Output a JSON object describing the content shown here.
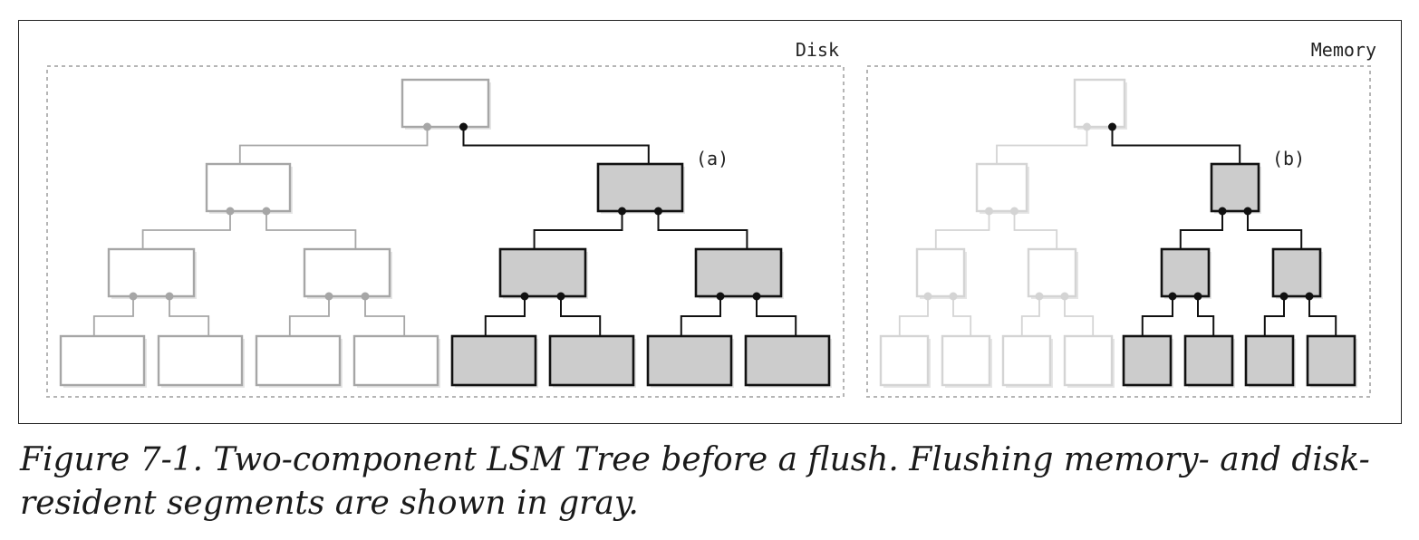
{
  "diagram": {
    "regions": [
      {
        "id": "disk",
        "label": "Disk"
      },
      {
        "id": "memory",
        "label": "Memory"
      }
    ],
    "markers": [
      {
        "id": "a",
        "label": "(a)"
      },
      {
        "id": "b",
        "label": "(b)"
      }
    ],
    "colors": {
      "flushing_fill": "#cccccc",
      "flushing_stroke": "#111111",
      "disk_resident_stroke": "#a6a6a6",
      "memory_resident_stroke": "#d4d4d4",
      "dashed_border": "#b5b5b5",
      "frame": "#222222"
    }
  },
  "caption": {
    "text": "Figure 7-1. Two-component LSM Tree before a flush. Flushing memory- and disk-resident segments are shown in gray."
  }
}
